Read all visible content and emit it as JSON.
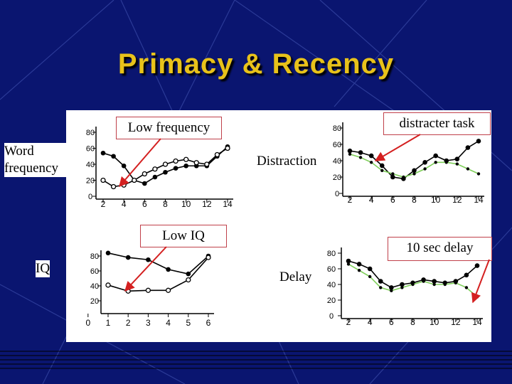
{
  "slide": {
    "title": "Primacy & Recency",
    "background_color": "#0a1570",
    "title_color": "#e8c21a",
    "side_labels": {
      "word_frequency": "Word frequency",
      "iq": "IQ",
      "distraction": "Distraction",
      "delay": "Delay"
    },
    "callouts": {
      "low_frequency": "Low frequency",
      "distracter_task": "distracter task",
      "low_iq": "Low IQ",
      "ten_sec_delay": "10 sec delay"
    },
    "arrow_color": "#d42020"
  },
  "chart_data": [
    {
      "id": "word-frequency",
      "type": "line",
      "x": [
        2,
        3,
        4,
        5,
        6,
        7,
        8,
        9,
        10,
        11,
        12,
        13,
        14
      ],
      "series": [
        {
          "marker": "filled",
          "values": [
            54,
            50,
            38,
            20,
            16,
            24,
            30,
            35,
            38,
            38,
            38,
            50,
            62
          ]
        },
        {
          "marker": "open",
          "values": [
            20,
            12,
            14,
            20,
            28,
            34,
            40,
            44,
            46,
            42,
            40,
            52,
            60
          ]
        }
      ],
      "xticks": [
        "2",
        "4",
        "6",
        "8",
        "10",
        "12",
        "14"
      ],
      "yticks": [
        "0",
        "20",
        "40",
        "60",
        "80"
      ],
      "ylim": [
        0,
        85
      ]
    },
    {
      "id": "distraction",
      "type": "line",
      "x": [
        2,
        3,
        4,
        5,
        6,
        7,
        8,
        9,
        10,
        11,
        12,
        13,
        14
      ],
      "series": [
        {
          "marker": "filled",
          "values": [
            52,
            50,
            46,
            34,
            20,
            18,
            28,
            38,
            46,
            40,
            42,
            56,
            64
          ]
        },
        {
          "marker": "dot",
          "values": [
            48,
            44,
            38,
            28,
            24,
            20,
            24,
            30,
            38,
            38,
            36,
            30,
            24
          ]
        }
      ],
      "xticks": [
        "2",
        "4",
        "6",
        "8",
        "10",
        "12",
        "14"
      ],
      "yticks": [
        "0",
        "20",
        "40",
        "60",
        "80"
      ],
      "ylim": [
        0,
        85
      ]
    },
    {
      "id": "iq",
      "type": "line",
      "x": [
        1,
        2,
        3,
        4,
        5,
        6
      ],
      "series": [
        {
          "marker": "filled",
          "values": [
            84,
            78,
            75,
            62,
            56,
            80
          ]
        },
        {
          "marker": "open",
          "values": [
            41,
            33,
            34,
            34,
            48,
            78
          ]
        }
      ],
      "xticks": [
        "0",
        "1",
        "2",
        "3",
        "4",
        "5",
        "6"
      ],
      "yticks": [
        "20",
        "40",
        "60",
        "80"
      ],
      "ylim": [
        15,
        88
      ]
    },
    {
      "id": "delay",
      "type": "line",
      "x": [
        2,
        3,
        4,
        5,
        6,
        7,
        8,
        9,
        10,
        11,
        12,
        13,
        14
      ],
      "series": [
        {
          "marker": "filled",
          "values": [
            70,
            66,
            60,
            44,
            36,
            40,
            42,
            46,
            44,
            42,
            44,
            52,
            64
          ]
        },
        {
          "marker": "dot",
          "values": [
            66,
            58,
            50,
            36,
            32,
            36,
            40,
            44,
            40,
            40,
            42,
            36,
            24
          ]
        }
      ],
      "xticks": [
        "2",
        "4",
        "6",
        "8",
        "10",
        "12",
        "14"
      ],
      "yticks": [
        "0",
        "20",
        "40",
        "60",
        "80"
      ],
      "ylim": [
        0,
        88
      ]
    }
  ]
}
